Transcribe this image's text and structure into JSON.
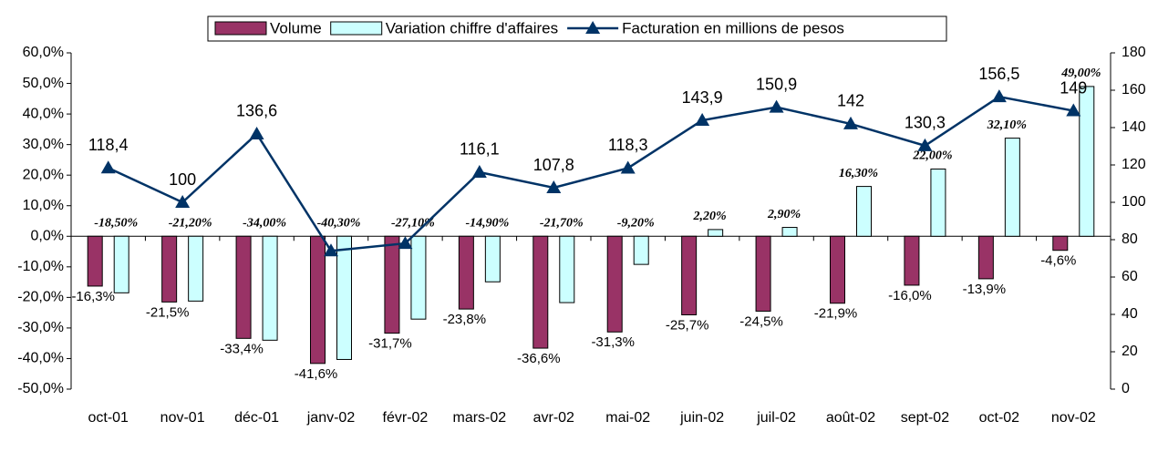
{
  "chart_data": {
    "type": "bar",
    "categories": [
      "oct-01",
      "nov-01",
      "déc-01",
      "janv-02",
      "févr-02",
      "mars-02",
      "avr-02",
      "mai-02",
      "juin-02",
      "juil-02",
      "août-02",
      "sept-02",
      "oct-02",
      "nov-02"
    ],
    "series": [
      {
        "name": "Volume",
        "type": "bar",
        "color": "#993366",
        "values": [
          -16.3,
          -21.5,
          -33.4,
          -41.6,
          -31.7,
          -23.8,
          -36.6,
          -31.3,
          -25.7,
          -24.5,
          -21.9,
          -16.0,
          -13.9,
          -4.6
        ],
        "value_labels": [
          "-16,3%",
          "-21,5%",
          "-33,4%",
          "-41,6%",
          "-31,7%",
          "-23,8%",
          "-36,6%",
          "-31,3%",
          "-25,7%",
          "-24,5%",
          "-21,9%",
          "-16,0%",
          "-13,9%",
          "-4,6%"
        ]
      },
      {
        "name": "Variation chiffre d'affaires",
        "type": "bar",
        "color": "#ccffff",
        "values": [
          -18.5,
          -21.2,
          -34.0,
          -40.3,
          -27.1,
          -14.9,
          -21.7,
          -9.2,
          2.2,
          2.9,
          16.3,
          22.0,
          32.1,
          49.0
        ],
        "value_labels": [
          "-18,50%",
          "-21,20%",
          "-34,00%",
          "-40,30%",
          "-27,10%",
          "-14,90%",
          "-21,70%",
          "-9,20%",
          "2,20%",
          "2,90%",
          "16,30%",
          "22,00%",
          "32,10%",
          "49,00%"
        ]
      },
      {
        "name": "Facturation en millions de pesos",
        "type": "line",
        "axis": "y2",
        "color": "#003366",
        "values": [
          118.4,
          100,
          136.6,
          74,
          78,
          116.1,
          107.8,
          118.3,
          143.9,
          150.9,
          142,
          130.3,
          156.5,
          149
        ],
        "value_labels": [
          "118,4",
          "100",
          "136,6",
          null,
          null,
          "116,1",
          "107,8",
          "118,3",
          "143,9",
          "150,9",
          "142",
          "130,3",
          "156,5",
          "149"
        ]
      }
    ],
    "ylim": [
      -50,
      60
    ],
    "yticks": [
      {
        "value": -50,
        "label": "-50,0%"
      },
      {
        "value": -40,
        "label": "-40,0%"
      },
      {
        "value": -30,
        "label": "-30,0%"
      },
      {
        "value": -20,
        "label": "-20,0%"
      },
      {
        "value": -10,
        "label": "-10,0%"
      },
      {
        "value": 0,
        "label": "0,0%"
      },
      {
        "value": 10,
        "label": "10,0%"
      },
      {
        "value": 20,
        "label": "20,0%"
      },
      {
        "value": 30,
        "label": "30,0%"
      },
      {
        "value": 40,
        "label": "40,0%"
      },
      {
        "value": 50,
        "label": "50,0%"
      },
      {
        "value": 60,
        "label": "60,0%"
      }
    ],
    "y2lim": [
      0,
      180
    ],
    "y2ticks": [
      0,
      20,
      40,
      60,
      80,
      100,
      120,
      140,
      160,
      180
    ],
    "grid": false,
    "legend": "top"
  }
}
